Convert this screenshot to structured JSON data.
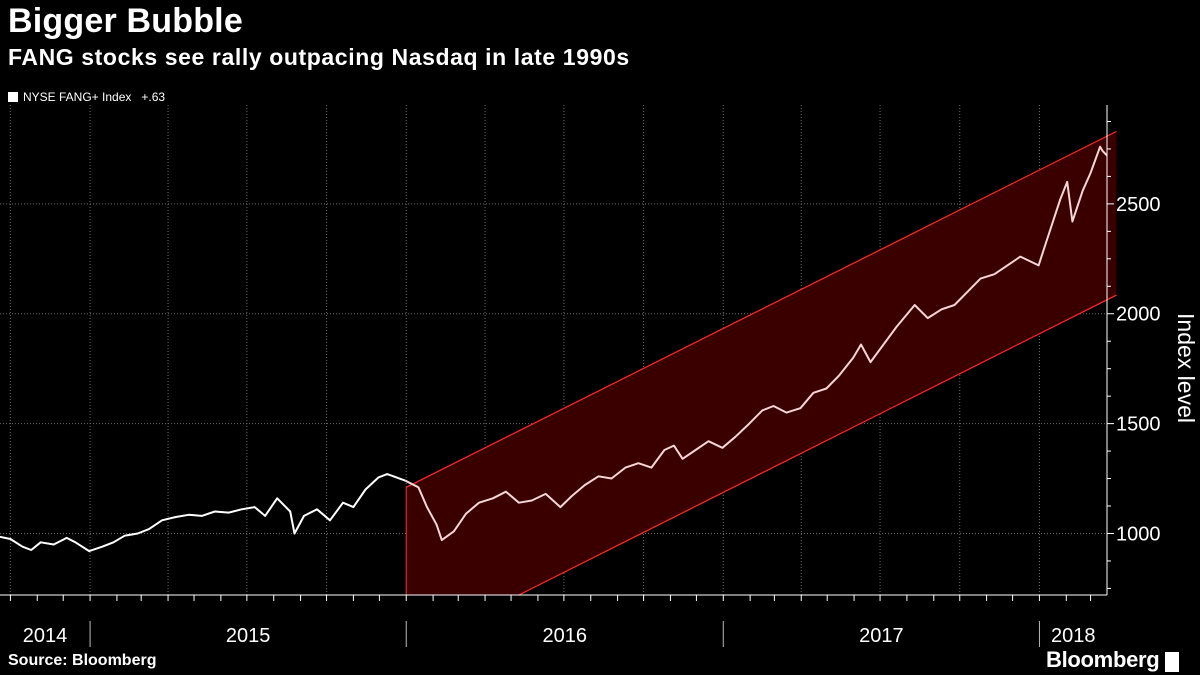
{
  "title": "Bigger Bubble",
  "subtitle": "FANG stocks see rally outpacing Nasdaq in late 1990s",
  "legend": {
    "label": "NYSE FANG+ Index",
    "value": "+.63",
    "color": "#ffffff"
  },
  "source": "Source: Bloomberg",
  "brand": "Bloomberg",
  "colors": {
    "background": "#000000",
    "line": "#ffffff",
    "line_in_channel": "#f5d5d5",
    "channel_stroke": "#ff2a2a",
    "channel_fill": "#3a0000",
    "grid": "#6a6a6a"
  },
  "chart_data": {
    "type": "line",
    "title": "Bigger Bubble",
    "subtitle": "FANG stocks see rally outpacing Nasdaq in late 1990s",
    "xlabel": "",
    "ylabel": "Index level",
    "ylim": [
      720,
      2950
    ],
    "xlim": [
      "2014-09-19",
      "2018-03-20"
    ],
    "y_ticks": [
      1000,
      1500,
      2000,
      2500
    ],
    "x_tick_labels": [
      "2014",
      "2015",
      "2016",
      "2017",
      "2018"
    ],
    "year_boundaries": [
      "2015-01-01",
      "2016-01-01",
      "2017-01-01",
      "2018-01-01"
    ],
    "grid": true,
    "legend_position": "top-left",
    "y_axis_side": "right",
    "series": [
      {
        "name": "NYSE FANG+ Index",
        "x": [
          "2014-09-19",
          "2014-10-01",
          "2014-10-15",
          "2014-10-25",
          "2014-11-05",
          "2014-11-20",
          "2014-12-05",
          "2014-12-15",
          "2014-12-31",
          "2015-01-15",
          "2015-01-28",
          "2015-02-10",
          "2015-02-25",
          "2015-03-10",
          "2015-03-25",
          "2015-04-10",
          "2015-04-25",
          "2015-05-10",
          "2015-05-25",
          "2015-06-10",
          "2015-06-25",
          "2015-07-10",
          "2015-07-22",
          "2015-08-05",
          "2015-08-20",
          "2015-08-25",
          "2015-09-05",
          "2015-09-20",
          "2015-10-05",
          "2015-10-20",
          "2015-11-01",
          "2015-11-15",
          "2015-11-30",
          "2015-12-10",
          "2015-12-31",
          "2016-01-15",
          "2016-01-25",
          "2016-02-05",
          "2016-02-11",
          "2016-02-25",
          "2016-03-10",
          "2016-03-25",
          "2016-04-10",
          "2016-04-25",
          "2016-05-10",
          "2016-05-25",
          "2016-06-10",
          "2016-06-27",
          "2016-07-10",
          "2016-07-25",
          "2016-08-10",
          "2016-08-25",
          "2016-09-10",
          "2016-09-25",
          "2016-10-10",
          "2016-10-25",
          "2016-11-05",
          "2016-11-15",
          "2016-11-30",
          "2016-12-15",
          "2016-12-31",
          "2017-01-15",
          "2017-01-31",
          "2017-02-15",
          "2017-02-28",
          "2017-03-15",
          "2017-03-31",
          "2017-04-15",
          "2017-04-30",
          "2017-05-15",
          "2017-05-31",
          "2017-06-09",
          "2017-06-20",
          "2017-07-05",
          "2017-07-20",
          "2017-08-10",
          "2017-08-25",
          "2017-09-10",
          "2017-09-25",
          "2017-10-10",
          "2017-10-25",
          "2017-11-10",
          "2017-11-25",
          "2017-12-10",
          "2017-12-31",
          "2018-01-10",
          "2018-01-25",
          "2018-02-02",
          "2018-02-08",
          "2018-02-20",
          "2018-03-01",
          "2018-03-12",
          "2018-03-15",
          "2018-03-20"
        ],
        "values": [
          985,
          975,
          940,
          925,
          960,
          950,
          980,
          960,
          920,
          940,
          960,
          990,
          1000,
          1020,
          1060,
          1075,
          1085,
          1080,
          1100,
          1095,
          1110,
          1120,
          1080,
          1160,
          1100,
          1000,
          1080,
          1110,
          1060,
          1140,
          1120,
          1200,
          1255,
          1270,
          1240,
          1210,
          1120,
          1040,
          970,
          1010,
          1090,
          1140,
          1160,
          1190,
          1140,
          1150,
          1180,
          1120,
          1170,
          1220,
          1260,
          1250,
          1300,
          1320,
          1300,
          1380,
          1400,
          1340,
          1380,
          1420,
          1390,
          1440,
          1500,
          1560,
          1580,
          1550,
          1570,
          1640,
          1660,
          1720,
          1800,
          1860,
          1780,
          1860,
          1940,
          2040,
          1980,
          2020,
          2040,
          2100,
          2160,
          2180,
          2220,
          2260,
          2220,
          2340,
          2520,
          2600,
          2420,
          2560,
          2640,
          2760,
          2740,
          2720
        ]
      }
    ],
    "channel": {
      "upper": {
        "x": [
          "2016-01-01",
          "2018-03-31"
        ],
        "y": [
          1210,
          2830
        ]
      },
      "lower": {
        "x": [
          "2016-05-10",
          "2018-03-31"
        ],
        "y": [
          720,
          2085
        ]
      }
    }
  }
}
